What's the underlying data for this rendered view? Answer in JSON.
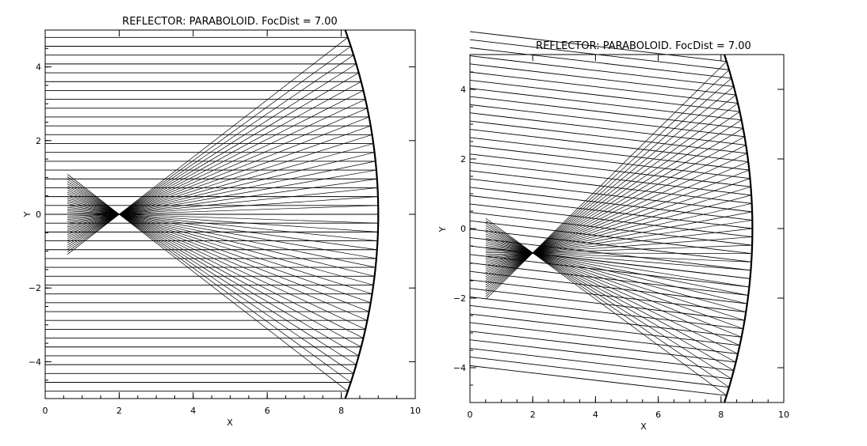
{
  "chart_data": [
    {
      "type": "line",
      "title": "REFLECTOR: PARABOLOID.  FocDist = 7.00",
      "xlabel": "X",
      "ylabel": "Y",
      "xlim": [
        0,
        10
      ],
      "ylim": [
        -5,
        5
      ],
      "xticks": [
        "0",
        "2",
        "4",
        "6",
        "8",
        "10"
      ],
      "yticks": [
        "−4",
        "−2",
        "0",
        "2",
        "4"
      ],
      "grid": false,
      "reflector": {
        "shape": "paraboloid",
        "focal_distance": 7.0,
        "vertex_x": 9.0,
        "y_range": [
          -5,
          5
        ]
      },
      "incident_rays": {
        "count": 41,
        "y_range": [
          -4.8,
          4.8
        ],
        "direction_deg": 0
      },
      "focus": [
        2.0,
        0.0
      ],
      "rays_terminate_at_x": 0.6
    },
    {
      "type": "line",
      "title": "REFLECTOR: PARABOLOID.  FocDist = 7.00",
      "xlabel": "X",
      "ylabel": "Y",
      "xlim": [
        0,
        10
      ],
      "ylim": [
        -5,
        5
      ],
      "xticks": [
        "0",
        "2",
        "4",
        "6",
        "8",
        "10"
      ],
      "yticks": [
        "−4",
        "−2",
        "0",
        "2",
        "4"
      ],
      "grid": false,
      "reflector": {
        "shape": "paraboloid",
        "focal_distance": 7.0,
        "vertex_x": 9.0,
        "y_range": [
          -5,
          5
        ]
      },
      "incident_rays": {
        "count": 41,
        "y_range": [
          -4.8,
          4.8
        ],
        "direction_deg": 6
      },
      "focus": [
        2.0,
        -0.7
      ],
      "rays_terminate_at_x": 0.5
    }
  ]
}
